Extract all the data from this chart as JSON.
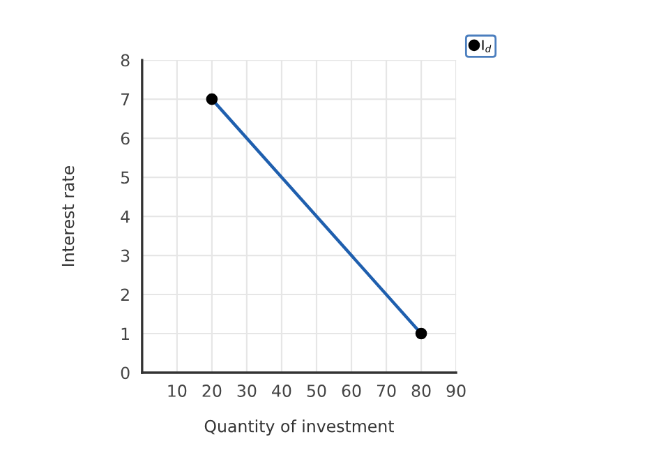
{
  "chart_data": {
    "type": "line",
    "xlabel": "Quantity of investment",
    "ylabel": "Interest rate",
    "x": [
      20,
      80
    ],
    "series": [
      {
        "name": "I$_{d}$",
        "color": "#1f5fae",
        "values": [
          7,
          1
        ]
      }
    ],
    "xlim": [
      0,
      90
    ],
    "xticks": [
      10,
      20,
      30,
      40,
      50,
      60,
      70,
      80,
      90
    ],
    "ylim": [
      0,
      8
    ],
    "yticks": [
      0,
      1,
      2,
      3,
      4,
      5,
      6,
      7,
      8
    ],
    "grid": true,
    "legend": "top right",
    "marker": "circle",
    "line_style": "solid"
  }
}
